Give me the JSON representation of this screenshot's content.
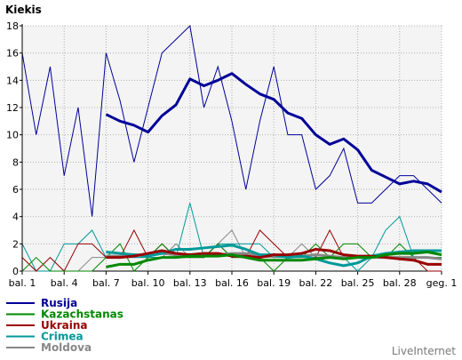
{
  "chart_data": {
    "type": "line",
    "title": "Kiekis",
    "xlabel": "",
    "ylabel": "",
    "ylim": [
      0,
      18
    ],
    "yticks": [
      0,
      2,
      4,
      6,
      8,
      10,
      12,
      14,
      16,
      18
    ],
    "x_tick_labels": [
      "bal. 1",
      "bal. 4",
      "bal. 7",
      "bal. 10",
      "bal. 13",
      "bal. 16",
      "bal. 19",
      "bal. 22",
      "bal. 25",
      "bal. 28",
      "geg. 1"
    ],
    "x_tick_days": [
      1,
      4,
      7,
      10,
      13,
      16,
      19,
      22,
      25,
      28,
      31
    ],
    "x_range": [
      1,
      31
    ],
    "grid": true,
    "legend_position": "bottom-left",
    "series": [
      {
        "name": "Rusija",
        "color": "#000099",
        "daily": [
          16,
          10,
          15,
          7,
          12,
          4,
          16,
          12.5,
          8,
          12,
          16,
          17,
          18,
          12,
          15,
          11,
          6,
          11,
          15,
          10,
          10,
          6,
          7,
          9,
          5,
          5,
          6,
          7,
          7,
          6,
          5
        ],
        "trend_start_day": 7,
        "trend": [
          11.5,
          11,
          10.7,
          10.2,
          11.4,
          12.2,
          14.1,
          13.6,
          14,
          14.5,
          13.7,
          13,
          12.6,
          11.6,
          11.2,
          10,
          9.3,
          9.7,
          8.9,
          7.4,
          6.9,
          6.4,
          6.6,
          6.4,
          5.8
        ]
      },
      {
        "name": "Kazachstanas",
        "color": "#008800",
        "daily": [
          0,
          1,
          0,
          0,
          0,
          0,
          1,
          2,
          0,
          1,
          2,
          1,
          1,
          1,
          2,
          1,
          1,
          1,
          0,
          1,
          1,
          2,
          1,
          2,
          2,
          1,
          1,
          2,
          1,
          1,
          1
        ],
        "trend_start_day": 7,
        "trend": [
          0.3,
          0.5,
          0.5,
          0.8,
          1,
          1,
          1.1,
          1.1,
          1.1,
          1.2,
          1,
          0.8,
          0.8,
          0.8,
          0.8,
          0.9,
          1,
          0.9,
          1,
          1,
          1.2,
          1.3,
          1.3,
          1.4,
          1.2
        ]
      },
      {
        "name": "Ukraina",
        "color": "#990000",
        "daily": [
          1,
          0,
          1,
          0,
          2,
          2,
          1,
          1,
          3,
          1,
          2,
          1,
          1,
          1,
          2,
          1,
          1,
          3,
          2,
          1,
          1,
          1,
          3,
          1,
          1,
          1,
          1,
          1,
          1,
          0,
          0
        ],
        "trend_start_day": 7,
        "trend": [
          1,
          1,
          1.1,
          1.3,
          1.5,
          1.3,
          1.2,
          1.3,
          1.3,
          1.1,
          1.1,
          1,
          1.2,
          1.2,
          1.3,
          1.6,
          1.5,
          1.2,
          1.1,
          1.1,
          1,
          0.9,
          0.8,
          0.5,
          0.5
        ]
      },
      {
        "name": "Crimea",
        "color": "#009999",
        "daily": [
          2,
          0,
          0,
          2,
          2,
          3,
          1,
          1,
          1,
          1,
          1,
          1,
          5,
          1,
          2,
          2,
          2,
          2,
          1,
          1,
          1,
          1,
          1,
          1,
          0,
          1,
          3,
          4,
          1,
          1,
          1
        ],
        "trend_start_day": 7,
        "trend": [
          1.4,
          1.3,
          1.2,
          1.1,
          1.3,
          1.6,
          1.6,
          1.7,
          1.8,
          1.9,
          1.6,
          1.2,
          1.2,
          1,
          1.1,
          0.9,
          0.6,
          0.4,
          0.6,
          1.1,
          1.3,
          1.4,
          1.5,
          1.5,
          1.5
        ]
      },
      {
        "name": "Moldova",
        "color": "#888888",
        "daily": [
          0,
          0,
          1,
          0,
          0,
          1,
          1,
          1,
          1,
          1,
          1,
          2,
          1,
          1,
          2,
          3,
          1,
          1,
          1,
          1,
          2,
          1,
          1,
          1,
          1,
          1,
          1,
          1,
          1,
          1,
          1
        ],
        "trend_start_day": 7,
        "trend": [
          1.1,
          1.1,
          1.2,
          1.2,
          1.3,
          1.2,
          1.2,
          1.3,
          1.2,
          1.3,
          1.3,
          1.2,
          1.1,
          1.1,
          1.1,
          1.2,
          1.1,
          1,
          1,
          1,
          1,
          1,
          1,
          1,
          0.9
        ]
      }
    ]
  },
  "branding": {
    "text": "LiveInternet"
  }
}
